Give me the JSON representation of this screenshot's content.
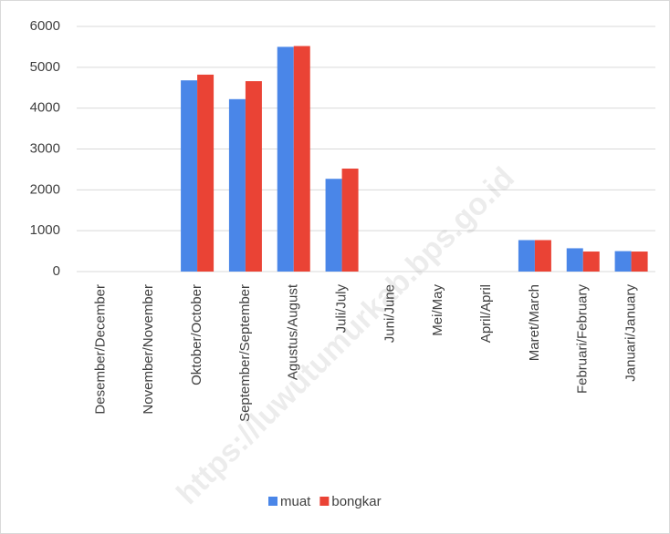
{
  "chart_data": {
    "type": "bar",
    "categories": [
      "Desember/December",
      "November/November",
      "Oktober/October",
      "September/September",
      "Agustus/August",
      "Juli/July",
      "Juni/June",
      "Mei/May",
      "April/April",
      "Maret/March",
      "Februari/February",
      "Januari/January"
    ],
    "series": [
      {
        "name": "muat",
        "color": "#4a86e8",
        "values": [
          0,
          0,
          4680,
          4220,
          5500,
          2270,
          0,
          0,
          0,
          770,
          570,
          500
        ]
      },
      {
        "name": "bongkar",
        "color": "#ea4335",
        "values": [
          0,
          0,
          4820,
          4660,
          5520,
          2520,
          0,
          0,
          0,
          770,
          490,
          490
        ]
      }
    ],
    "ylim": [
      0,
      6000
    ],
    "yticks": [
      0,
      1000,
      2000,
      3000,
      4000,
      5000,
      6000
    ],
    "grid": true,
    "legend": "bottom",
    "watermark": "https://luwutumurkab.bps.go.id"
  }
}
